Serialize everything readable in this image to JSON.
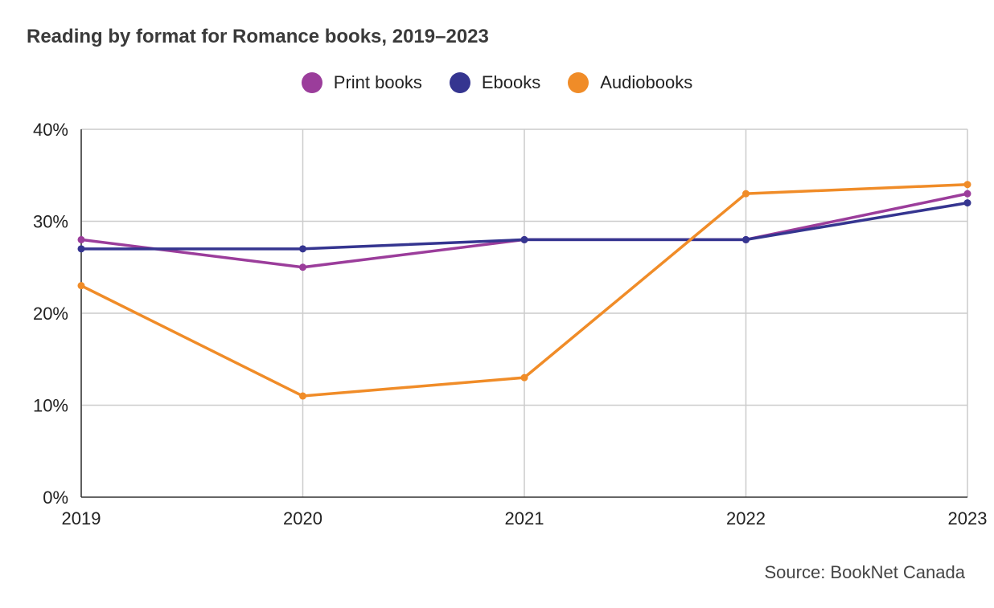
{
  "chart_data": {
    "type": "line",
    "title": "Reading by format for Romance books, 2019–2023",
    "x": [
      "2019",
      "2020",
      "2021",
      "2022",
      "2023"
    ],
    "ylim": [
      0,
      40
    ],
    "yticks": [
      "0%",
      "10%",
      "20%",
      "30%",
      "40%"
    ],
    "ytick_values": [
      0,
      10,
      20,
      30,
      40
    ],
    "grid": true,
    "legend_position": "top-center",
    "series": [
      {
        "name": "Print books",
        "color": "#9b3d9b",
        "values": [
          28,
          25,
          28,
          28,
          33
        ]
      },
      {
        "name": "Ebooks",
        "color": "#353590",
        "values": [
          27,
          27,
          28,
          28,
          32
        ]
      },
      {
        "name": "Audiobooks",
        "color": "#f08c28",
        "values": [
          23,
          11,
          13,
          33,
          34
        ]
      }
    ],
    "source": "Source: BookNet Canada"
  }
}
